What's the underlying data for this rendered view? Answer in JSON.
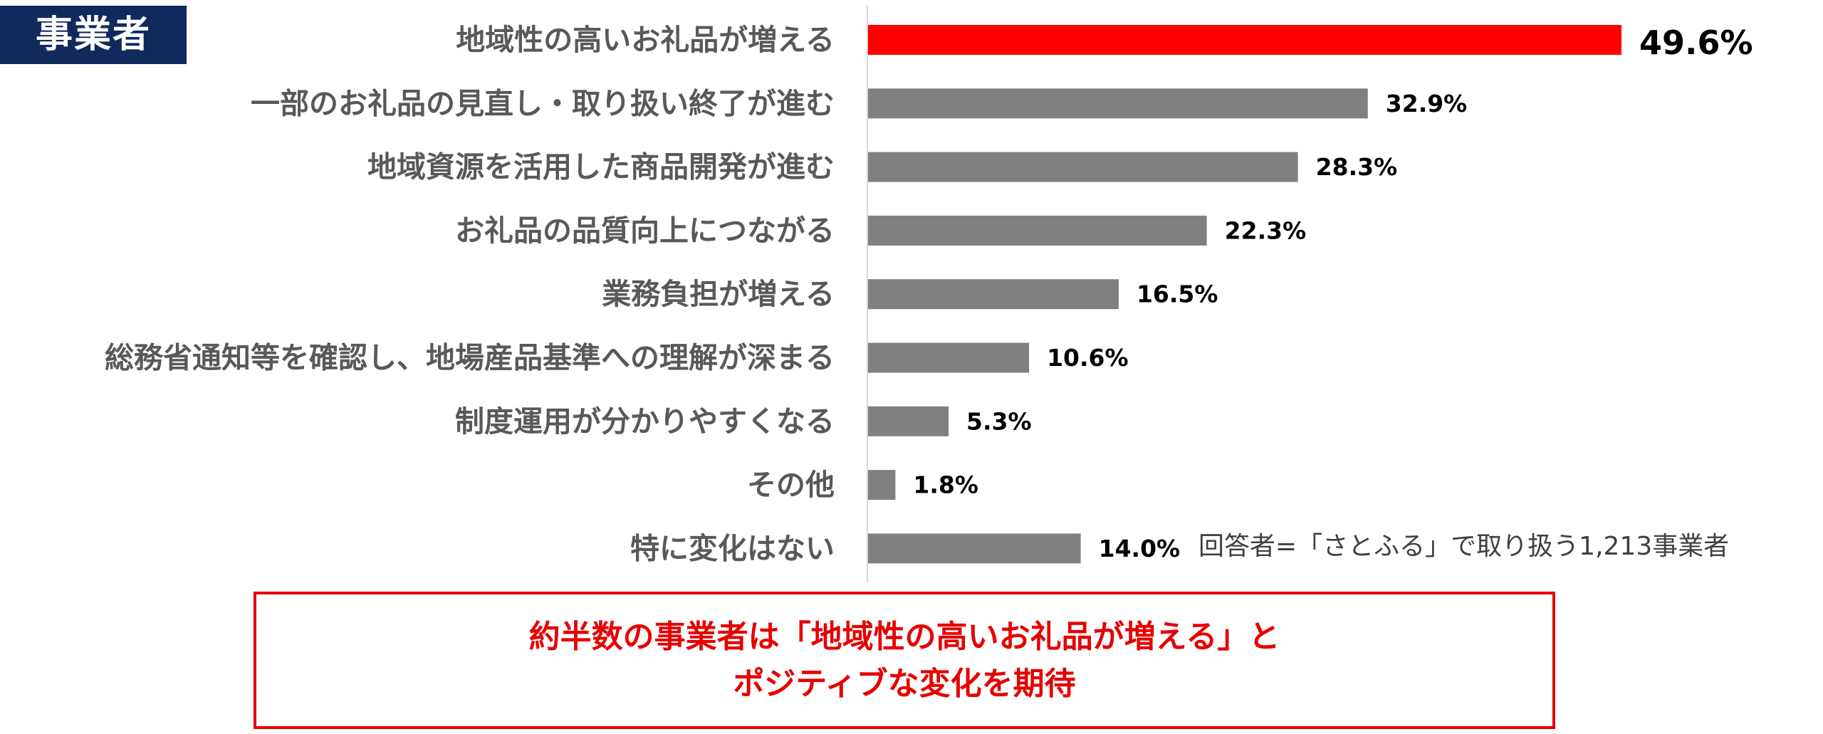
{
  "badge": {
    "label": "事業者"
  },
  "chart_data": {
    "type": "bar",
    "orientation": "horizontal",
    "categories": [
      "地域性の高いお礼品が増える",
      "一部のお礼品の見直し・取り扱い終了が進む",
      "地域資源を活用した商品開発が進む",
      "お礼品の品質向上につながる",
      "業務負担が増える",
      "総務省通知等を確認し、地場産品基準への理解が深まる",
      "制度運用が分かりやすくなる",
      "その他",
      "特に変化はない"
    ],
    "values": [
      49.6,
      32.9,
      28.3,
      22.3,
      16.5,
      10.6,
      5.3,
      1.8,
      14.0
    ],
    "value_labels": [
      "49.6%",
      "32.9%",
      "28.3%",
      "22.3%",
      "16.5%",
      "10.6%",
      "5.3%",
      "1.8%",
      "14.0%"
    ],
    "highlight_index": 0,
    "xlim": [
      0,
      50
    ],
    "grid": false,
    "colors": {
      "highlight": "#ff0000",
      "default": "#808080",
      "axis": "#d9d9d9"
    }
  },
  "note": {
    "respondents": "回答者=「さとふる」で取り扱う1,213事業者"
  },
  "callout": {
    "line1": "約半数の事業者は「地域性の高いお礼品が増える」と",
    "line2": "ポジティブな変化を期待",
    "color": "#e60000"
  }
}
